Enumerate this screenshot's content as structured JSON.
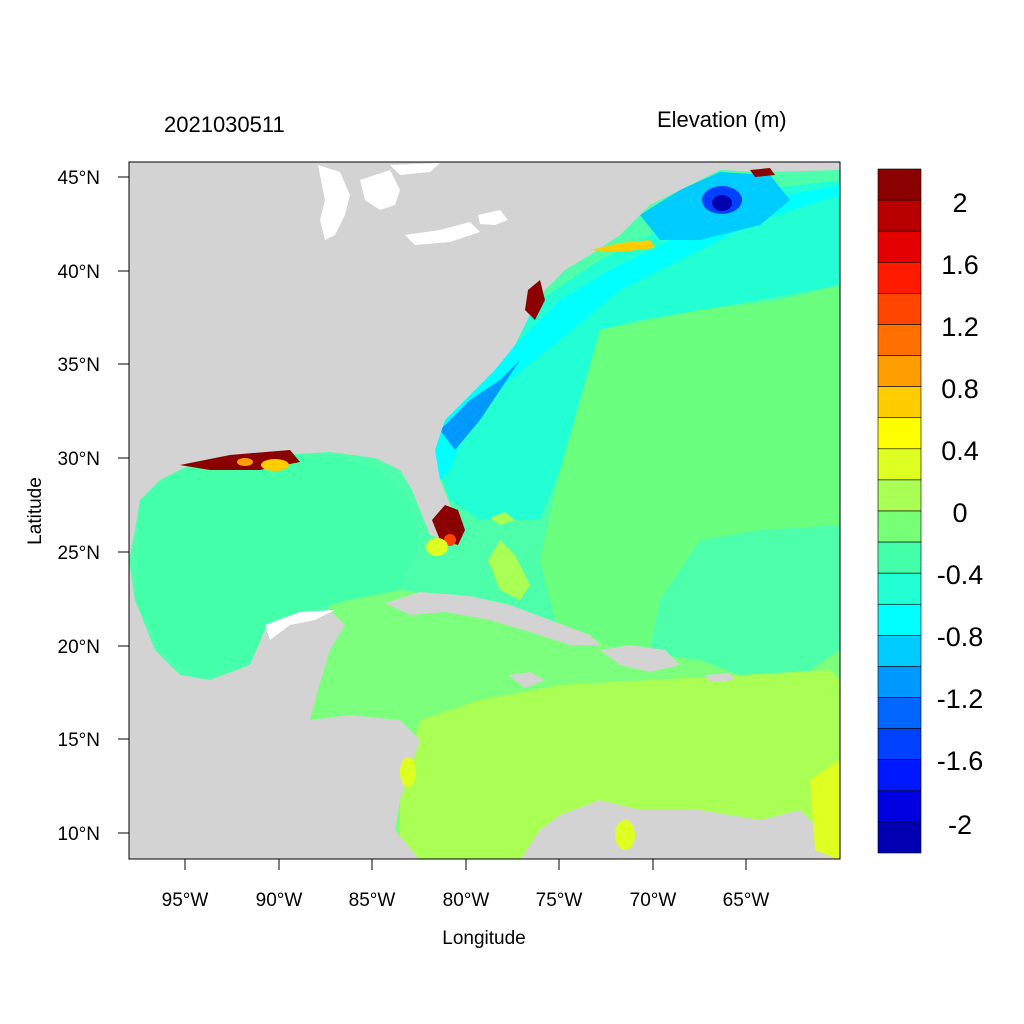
{
  "header": {
    "timestamp": "2021030511",
    "variable": "Elevation (m)"
  },
  "axes": {
    "x_label": "Longitude",
    "y_label": "Latitude",
    "x_ticks": [
      "95°W",
      "90°W",
      "85°W",
      "80°W",
      "75°W",
      "70°W",
      "65°W"
    ],
    "y_ticks": [
      "45°N",
      "40°N",
      "35°N",
      "30°N",
      "25°N",
      "20°N",
      "15°N",
      "10°N"
    ],
    "lon_range": [
      -98,
      -60
    ],
    "lat_range": [
      8.5,
      46
    ]
  },
  "colorbar": {
    "labels": [
      "2",
      "1.6",
      "1.2",
      "0.8",
      "0.4",
      "0",
      "-0.4",
      "-0.8",
      "-1.2",
      "-1.6",
      "-2"
    ],
    "colors": [
      "#8b0000",
      "#b80000",
      "#e50000",
      "#ff1a00",
      "#ff4500",
      "#ff7000",
      "#ff9e00",
      "#ffcc00",
      "#ffff00",
      "#ddff22",
      "#aaff55",
      "#77ff77",
      "#44ffaa",
      "#22ffd5",
      "#00ffff",
      "#00ccff",
      "#0099ff",
      "#0066ff",
      "#0040ff",
      "#0018ff",
      "#0000e0",
      "#0000b0"
    ]
  },
  "colors": {
    "land": "#d3d3d3",
    "water_white": "#ffffff"
  }
}
